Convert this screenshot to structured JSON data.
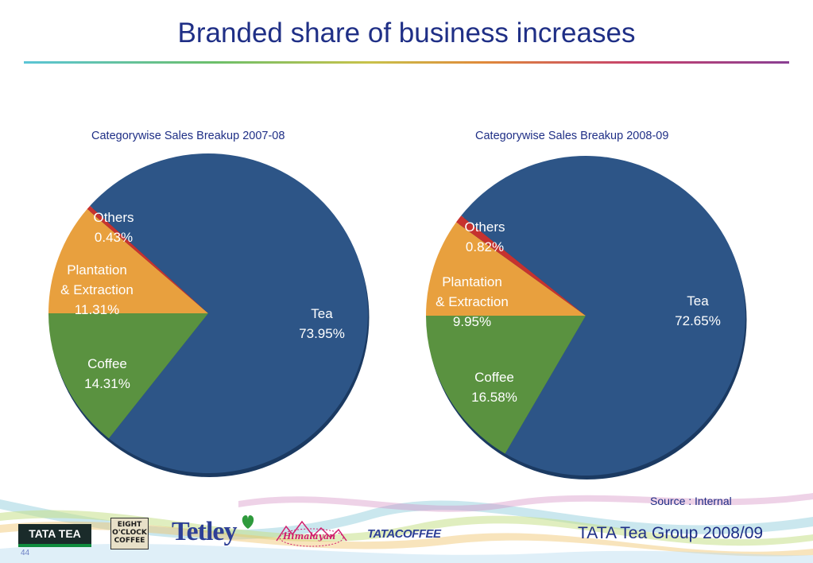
{
  "slide": {
    "title": "Branded share of business increases",
    "source": "Source :  Internal",
    "footer": "TATA Tea Group 2008/09",
    "page_number": "44"
  },
  "logos": {
    "tata_tea": "TATA TEA",
    "eight_oclock_line1": "EIGHT",
    "eight_oclock_line2": "O'CLOCK",
    "eight_oclock_line3": "COFFEE",
    "tetley": "Tetley",
    "himalayan": "Himalayan",
    "tata_coffee_1": "TATA",
    "tata_coffee_2": "COFFEE"
  },
  "colors": {
    "title": "#1f2f86",
    "tea": "#2d5587",
    "coffee": "#5a9240",
    "plantation": "#e8a03e",
    "others": "#c6322f"
  },
  "chart_data": [
    {
      "type": "pie",
      "title": "Categorywise Sales Breakup 2007-08",
      "slices": [
        {
          "name": "Tea",
          "value": 73.95,
          "label": "73.95%",
          "color": "#2d5587"
        },
        {
          "name": "Coffee",
          "value": 14.31,
          "label": "14.31%",
          "color": "#5a9240"
        },
        {
          "name": "Plantation & Extraction",
          "value": 11.31,
          "label": "11.31%",
          "color": "#e8a03e"
        },
        {
          "name": "Others",
          "value": 0.43,
          "label": "0.43%",
          "color": "#c6322f"
        }
      ]
    },
    {
      "type": "pie",
      "title": "Categorywise Sales Breakup 2008-09",
      "slices": [
        {
          "name": "Tea",
          "value": 72.65,
          "label": "72.65%",
          "color": "#2d5587"
        },
        {
          "name": "Coffee",
          "value": 16.58,
          "label": "16.58%",
          "color": "#5a9240"
        },
        {
          "name": "Plantation & Extraction",
          "value": 9.95,
          "label": "9.95%",
          "color": "#e8a03e"
        },
        {
          "name": "Others",
          "value": 0.82,
          "label": "0.82%",
          "color": "#c6322f"
        }
      ]
    }
  ]
}
